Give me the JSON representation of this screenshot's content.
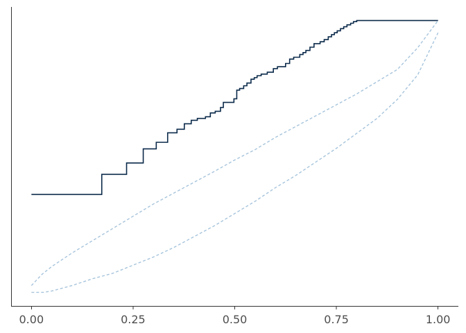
{
  "chart_data": {
    "type": "line",
    "title": "",
    "xlabel": "",
    "ylabel": "",
    "xlim": [
      -0.05,
      1.05
    ],
    "ylim": [
      -0.05,
      1.05
    ],
    "grid": false,
    "x_ticks": [
      0,
      0.25,
      0.5,
      0.75,
      1.0
    ],
    "x_tick_labels": [
      "0.00",
      "0.25",
      "0.50",
      "0.75",
      "1.00"
    ],
    "y_ticks": [],
    "colors": {
      "step": "#0b2a4a",
      "band": "#a6c4dc",
      "axis": "#333333",
      "tick_text": "#4d4d4d"
    },
    "series": [
      {
        "style": "step",
        "color": "#0b2a4a",
        "points": [
          [
            0.0,
            0.36
          ],
          [
            0.173,
            0.36
          ],
          [
            0.173,
            0.434
          ],
          [
            0.234,
            0.434
          ],
          [
            0.234,
            0.476
          ],
          [
            0.275,
            0.476
          ],
          [
            0.275,
            0.528
          ],
          [
            0.307,
            0.528
          ],
          [
            0.307,
            0.552
          ],
          [
            0.335,
            0.552
          ],
          [
            0.335,
            0.587
          ],
          [
            0.358,
            0.587
          ],
          [
            0.358,
            0.6
          ],
          [
            0.376,
            0.6
          ],
          [
            0.376,
            0.62
          ],
          [
            0.393,
            0.62
          ],
          [
            0.393,
            0.633
          ],
          [
            0.408,
            0.633
          ],
          [
            0.408,
            0.64
          ],
          [
            0.428,
            0.64
          ],
          [
            0.428,
            0.646
          ],
          [
            0.44,
            0.646
          ],
          [
            0.44,
            0.66
          ],
          [
            0.452,
            0.66
          ],
          [
            0.452,
            0.666
          ],
          [
            0.465,
            0.666
          ],
          [
            0.465,
            0.68
          ],
          [
            0.472,
            0.68
          ],
          [
            0.472,
            0.699
          ],
          [
            0.498,
            0.699
          ],
          [
            0.498,
            0.712
          ],
          [
            0.505,
            0.712
          ],
          [
            0.505,
            0.744
          ],
          [
            0.512,
            0.744
          ],
          [
            0.512,
            0.75
          ],
          [
            0.522,
            0.75
          ],
          [
            0.522,
            0.76
          ],
          [
            0.53,
            0.76
          ],
          [
            0.53,
            0.77
          ],
          [
            0.54,
            0.77
          ],
          [
            0.54,
            0.784
          ],
          [
            0.548,
            0.784
          ],
          [
            0.548,
            0.79
          ],
          [
            0.555,
            0.79
          ],
          [
            0.555,
            0.797
          ],
          [
            0.565,
            0.797
          ],
          [
            0.565,
            0.803
          ],
          [
            0.58,
            0.803
          ],
          [
            0.58,
            0.81
          ],
          [
            0.595,
            0.81
          ],
          [
            0.595,
            0.823
          ],
          [
            0.605,
            0.823
          ],
          [
            0.605,
            0.83
          ],
          [
            0.625,
            0.83
          ],
          [
            0.625,
            0.842
          ],
          [
            0.635,
            0.842
          ],
          [
            0.635,
            0.858
          ],
          [
            0.645,
            0.858
          ],
          [
            0.645,
            0.865
          ],
          [
            0.66,
            0.865
          ],
          [
            0.66,
            0.875
          ],
          [
            0.668,
            0.875
          ],
          [
            0.668,
            0.882
          ],
          [
            0.675,
            0.882
          ],
          [
            0.675,
            0.89
          ],
          [
            0.685,
            0.89
          ],
          [
            0.685,
            0.902
          ],
          [
            0.695,
            0.902
          ],
          [
            0.695,
            0.915
          ],
          [
            0.71,
            0.915
          ],
          [
            0.71,
            0.922
          ],
          [
            0.72,
            0.922
          ],
          [
            0.72,
            0.93
          ],
          [
            0.73,
            0.93
          ],
          [
            0.73,
            0.94
          ],
          [
            0.738,
            0.94
          ],
          [
            0.738,
            0.948
          ],
          [
            0.745,
            0.948
          ],
          [
            0.745,
            0.955
          ],
          [
            0.752,
            0.955
          ],
          [
            0.752,
            0.962
          ],
          [
            0.76,
            0.962
          ],
          [
            0.76,
            0.97
          ],
          [
            0.768,
            0.97
          ],
          [
            0.768,
            0.977
          ],
          [
            0.776,
            0.977
          ],
          [
            0.776,
            0.984
          ],
          [
            0.785,
            0.984
          ],
          [
            0.785,
            0.99
          ],
          [
            0.792,
            0.99
          ],
          [
            0.792,
            0.996
          ],
          [
            0.8,
            0.996
          ],
          [
            0.8,
            1.0
          ],
          [
            1.0,
            1.0
          ]
        ]
      },
      {
        "style": "dashed",
        "color": "#a6c4dc",
        "points": [
          [
            0.0,
            0.025
          ],
          [
            0.025,
            0.065
          ],
          [
            0.05,
            0.095
          ],
          [
            0.1,
            0.145
          ],
          [
            0.15,
            0.19
          ],
          [
            0.2,
            0.235
          ],
          [
            0.25,
            0.28
          ],
          [
            0.3,
            0.325
          ],
          [
            0.35,
            0.365
          ],
          [
            0.4,
            0.405
          ],
          [
            0.45,
            0.445
          ],
          [
            0.5,
            0.487
          ],
          [
            0.55,
            0.525
          ],
          [
            0.6,
            0.57
          ],
          [
            0.65,
            0.61
          ],
          [
            0.7,
            0.65
          ],
          [
            0.75,
            0.69
          ],
          [
            0.8,
            0.73
          ],
          [
            0.85,
            0.775
          ],
          [
            0.9,
            0.82
          ],
          [
            0.95,
            0.9
          ],
          [
            1.0,
            1.0
          ]
        ]
      },
      {
        "style": "dashed",
        "color": "#a6c4dc",
        "points": [
          [
            0.0,
            0.0
          ],
          [
            0.03,
            0.0
          ],
          [
            0.05,
            0.005
          ],
          [
            0.1,
            0.025
          ],
          [
            0.15,
            0.05
          ],
          [
            0.2,
            0.07
          ],
          [
            0.25,
            0.1
          ],
          [
            0.3,
            0.13
          ],
          [
            0.35,
            0.165
          ],
          [
            0.4,
            0.205
          ],
          [
            0.45,
            0.245
          ],
          [
            0.5,
            0.29
          ],
          [
            0.55,
            0.335
          ],
          [
            0.6,
            0.385
          ],
          [
            0.65,
            0.43
          ],
          [
            0.7,
            0.48
          ],
          [
            0.75,
            0.53
          ],
          [
            0.8,
            0.585
          ],
          [
            0.85,
            0.64
          ],
          [
            0.9,
            0.71
          ],
          [
            0.95,
            0.8
          ],
          [
            1.0,
            0.955
          ]
        ]
      }
    ]
  }
}
